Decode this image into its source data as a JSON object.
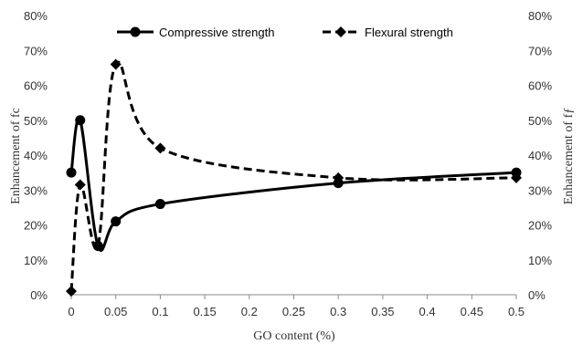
{
  "chart_data": {
    "type": "line",
    "title": "",
    "xlabel": "GO content (%)",
    "ylabel_left": "Enhancement of fс",
    "ylabel_right": "Enhancement of fƒ",
    "xlim": [
      0,
      0.5
    ],
    "ylim": [
      0,
      80
    ],
    "x_ticks": [
      "0",
      "0.05",
      "0.1",
      "0.15",
      "0.2",
      "0.25",
      "0.3",
      "0.35",
      "0.4",
      "0.45",
      "0.5"
    ],
    "x_tick_values": [
      0,
      0.05,
      0.1,
      0.15,
      0.2,
      0.25,
      0.3,
      0.35,
      0.4,
      0.45,
      0.5
    ],
    "y_ticks": [
      "0%",
      "10%",
      "20%",
      "30%",
      "40%",
      "50%",
      "60%",
      "70%",
      "80%"
    ],
    "y_tick_values": [
      0,
      10,
      20,
      30,
      40,
      50,
      60,
      70,
      80
    ],
    "grid": false,
    "legend": "top-center",
    "series": [
      {
        "name": "Compressive strength",
        "marker": "circle",
        "line_style": "solid",
        "color": "#000000",
        "x": [
          0,
          0.01,
          0.03,
          0.05,
          0.1,
          0.3,
          0.5
        ],
        "values": [
          35,
          50,
          14,
          21,
          26,
          32,
          35
        ]
      },
      {
        "name": "Flexural strength",
        "marker": "diamond",
        "line_style": "dashed",
        "color": "#000000",
        "x": [
          0,
          0.01,
          0.03,
          0.05,
          0.1,
          0.3,
          0.5
        ],
        "values": [
          1,
          31.5,
          14,
          66,
          42,
          33.5,
          33.5
        ]
      }
    ]
  }
}
